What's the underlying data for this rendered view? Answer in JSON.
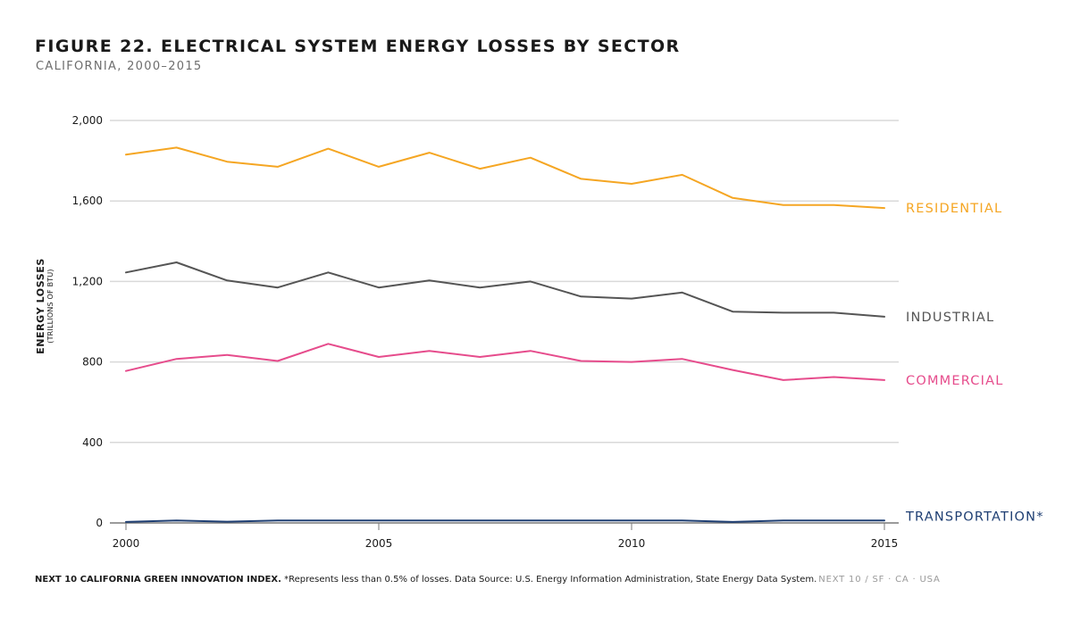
{
  "header": {
    "title": "FIGURE 22. ELECTRICAL SYSTEM ENERGY LOSSES BY SECTOR",
    "subtitle": "CALIFORNIA, 2000–2015"
  },
  "footer": {
    "org": "NEXT 10 CALIFORNIA GREEN INNOVATION INDEX.",
    "note": " *Represents less than 0.5% of losses. Data Source: U.S. Energy Information Administration, State Energy Data System.",
    "brand": "NEXT 10  /  SF · CA · USA"
  },
  "chart_data": {
    "type": "line",
    "title": "FIGURE 22. ELECTRICAL SYSTEM ENERGY LOSSES BY SECTOR",
    "subtitle": "CALIFORNIA, 2000–2015",
    "ylabel": "ENERGY LOSSES",
    "ylabel_sub": "(TRILLIONS OF BTU)",
    "xlabel": "",
    "x": [
      2000,
      2001,
      2002,
      2003,
      2004,
      2005,
      2006,
      2007,
      2008,
      2009,
      2010,
      2011,
      2012,
      2013,
      2014,
      2015
    ],
    "x_ticks": [
      2000,
      2005,
      2010,
      2015
    ],
    "x_tick_labels": [
      "2000",
      "2005",
      "2010",
      "2015"
    ],
    "y_ticks": [
      0,
      400,
      800,
      1200,
      1600,
      2000
    ],
    "y_tick_labels": [
      "0",
      "400",
      "800",
      "1,200",
      "1,600",
      "2,000"
    ],
    "ylim": [
      0,
      2000
    ],
    "xlim": [
      2000,
      2015
    ],
    "grid": true,
    "legend": "labels at right end of lines",
    "series": [
      {
        "name": "RESIDENTIAL",
        "color": "#F5A623",
        "values": [
          1830,
          1865,
          1795,
          1770,
          1860,
          1770,
          1840,
          1760,
          1815,
          1710,
          1685,
          1730,
          1615,
          1580,
          1580,
          1565
        ]
      },
      {
        "name": "INDUSTRIAL",
        "color": "#555555",
        "values": [
          1245,
          1295,
          1205,
          1170,
          1245,
          1170,
          1205,
          1170,
          1200,
          1125,
          1115,
          1145,
          1050,
          1045,
          1045,
          1025
        ]
      },
      {
        "name": "COMMERCIAL",
        "color": "#E64C8C",
        "values": [
          755,
          815,
          835,
          805,
          890,
          825,
          855,
          825,
          855,
          805,
          800,
          815,
          760,
          710,
          725,
          710
        ]
      },
      {
        "name": "TRANSPORTATION*",
        "color": "#1F3F73",
        "values": [
          5,
          12,
          6,
          12,
          12,
          12,
          12,
          12,
          12,
          12,
          12,
          12,
          5,
          12,
          12,
          12
        ]
      }
    ]
  }
}
